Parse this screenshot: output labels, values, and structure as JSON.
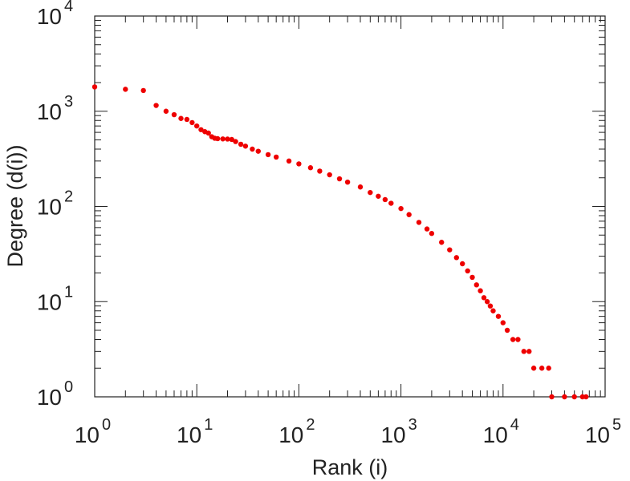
{
  "chart_data": {
    "type": "scatter",
    "title": "",
    "xlabel": "Rank (i)",
    "ylabel": "Degree (d(i))",
    "xscale": "log",
    "yscale": "log",
    "xlim": [
      1,
      100000
    ],
    "ylim": [
      1,
      10000
    ],
    "grid": false,
    "legend": "none",
    "marker_color": "#ee0000",
    "x_ticks": [
      {
        "base": "10",
        "exp": "0"
      },
      {
        "base": "10",
        "exp": "1"
      },
      {
        "base": "10",
        "exp": "2"
      },
      {
        "base": "10",
        "exp": "3"
      },
      {
        "base": "10",
        "exp": "4"
      },
      {
        "base": "10",
        "exp": "5"
      }
    ],
    "y_ticks": [
      {
        "base": "10",
        "exp": "0"
      },
      {
        "base": "10",
        "exp": "1"
      },
      {
        "base": "10",
        "exp": "2"
      },
      {
        "base": "10",
        "exp": "3"
      },
      {
        "base": "10",
        "exp": "4"
      }
    ],
    "series": [
      {
        "points": [
          [
            1,
            1800
          ],
          [
            2,
            1700
          ],
          [
            3,
            1650
          ],
          [
            4,
            1150
          ],
          [
            5,
            1000
          ],
          [
            6,
            920
          ],
          [
            7,
            840
          ],
          [
            8,
            820
          ],
          [
            9,
            760
          ],
          [
            10,
            700
          ],
          [
            11,
            640
          ],
          [
            12,
            610
          ],
          [
            13,
            590
          ],
          [
            14,
            540
          ],
          [
            15,
            520
          ],
          [
            16,
            515
          ],
          [
            18,
            512
          ],
          [
            20,
            510
          ],
          [
            22,
            505
          ],
          [
            24,
            480
          ],
          [
            27,
            450
          ],
          [
            30,
            430
          ],
          [
            35,
            400
          ],
          [
            40,
            380
          ],
          [
            50,
            350
          ],
          [
            60,
            330
          ],
          [
            80,
            300
          ],
          [
            100,
            280
          ],
          [
            130,
            255
          ],
          [
            160,
            235
          ],
          [
            200,
            215
          ],
          [
            250,
            195
          ],
          [
            300,
            180
          ],
          [
            400,
            160
          ],
          [
            500,
            140
          ],
          [
            600,
            128
          ],
          [
            700,
            118
          ],
          [
            800,
            108
          ],
          [
            1000,
            95
          ],
          [
            1200,
            82
          ],
          [
            1500,
            68
          ],
          [
            1800,
            58
          ],
          [
            2000,
            52
          ],
          [
            2500,
            42
          ],
          [
            3000,
            35
          ],
          [
            3500,
            29
          ],
          [
            4000,
            25
          ],
          [
            4500,
            21
          ],
          [
            5000,
            18
          ],
          [
            5500,
            15
          ],
          [
            6000,
            13
          ],
          [
            6500,
            11
          ],
          [
            7000,
            10
          ],
          [
            7500,
            9
          ],
          [
            8000,
            8
          ],
          [
            9000,
            7
          ],
          [
            10000,
            6
          ],
          [
            11000,
            5
          ],
          [
            12500,
            4
          ],
          [
            14000,
            4
          ],
          [
            16000,
            3
          ],
          [
            18000,
            3
          ],
          [
            20000,
            2
          ],
          [
            24000,
            2
          ],
          [
            28000,
            2
          ],
          [
            30000,
            1
          ],
          [
            40000,
            1
          ],
          [
            50000,
            1
          ],
          [
            60000,
            1
          ],
          [
            65000,
            1
          ]
        ]
      }
    ]
  }
}
